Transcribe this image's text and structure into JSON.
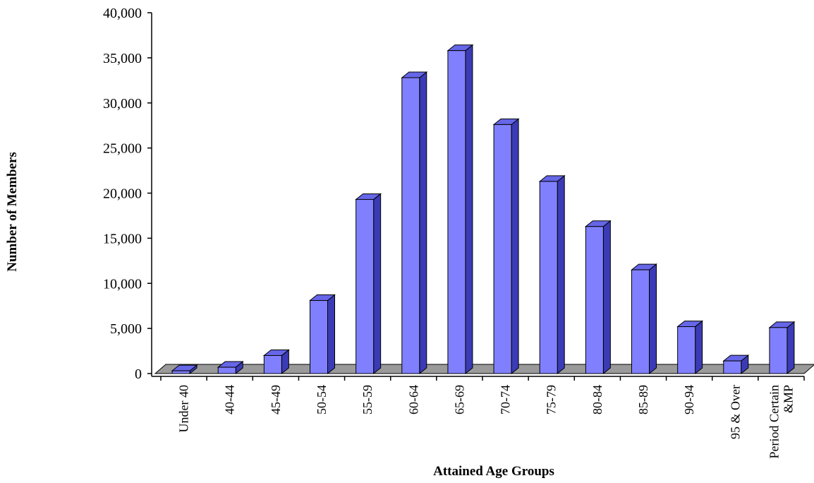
{
  "chart_data": {
    "type": "bar",
    "title": "",
    "xlabel": "Attained  Age Groups",
    "ylabel": "Number  of Members",
    "ylim": [
      0,
      40000
    ],
    "yticks": [
      0,
      5000,
      10000,
      15000,
      20000,
      25000,
      30000,
      35000,
      40000
    ],
    "ytick_labels": [
      "0",
      "5,000",
      "10,000",
      "15,000",
      "20,000",
      "25,000",
      "30,000",
      "35,000",
      "40,000"
    ],
    "categories": [
      "Under 40",
      "40-44",
      "45-49",
      "50-54",
      "55-59",
      "60-64",
      "65-69",
      "70-74",
      "75-79",
      "80-84",
      "85-89",
      "90-94",
      "95 & Over",
      "Period Certain &MP"
    ],
    "category_labels": [
      [
        "Under 40"
      ],
      [
        "40-44"
      ],
      [
        "45-49"
      ],
      [
        "50-54"
      ],
      [
        "55-59"
      ],
      [
        "60-64"
      ],
      [
        "65-69"
      ],
      [
        "70-74"
      ],
      [
        "75-79"
      ],
      [
        "80-84"
      ],
      [
        "85-89"
      ],
      [
        "90-94"
      ],
      [
        "95 & Over"
      ],
      [
        "Period Certain",
        "&MP"
      ]
    ],
    "values": [
      300,
      700,
      2000,
      8100,
      19300,
      32800,
      35800,
      27600,
      21300,
      16300,
      11500,
      5200,
      1400,
      5100
    ],
    "grid": false,
    "legend": "none",
    "three_d": true,
    "colors": {
      "bar_front": "#8080ff",
      "bar_top": "#6666e8",
      "bar_side": "#3b3bb5",
      "floor": "#9a9a9a",
      "outline": "#000000"
    }
  }
}
